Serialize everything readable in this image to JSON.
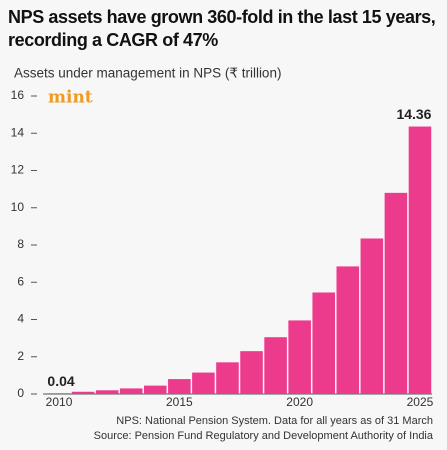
{
  "chart_data": {
    "type": "bar",
    "title": "NPS assets have grown 360-fold in the last 15 years, recording a CAGR of 47%",
    "subtitle": "Assets under management in NPS (₹ trillion)",
    "logo": "mint",
    "x": [
      2010,
      2011,
      2012,
      2013,
      2014,
      2015,
      2016,
      2017,
      2018,
      2019,
      2020,
      2021,
      2022,
      2023,
      2024,
      2025
    ],
    "values": [
      0.04,
      0.12,
      0.2,
      0.3,
      0.45,
      0.8,
      1.15,
      1.7,
      2.3,
      3.05,
      3.95,
      5.45,
      6.85,
      8.35,
      10.8,
      14.36
    ],
    "color": "#ec3a8c",
    "xlim": [
      2009.5,
      2025.5
    ],
    "xticks": [
      2010,
      2015,
      2020,
      2025
    ],
    "ylim": [
      0,
      16
    ],
    "yticks": [
      0,
      2,
      4,
      6,
      8,
      10,
      12,
      14,
      16
    ],
    "grid": false,
    "notes": [
      "NPS: National Pension System. Data for all years as of 31 March",
      "Source: Pension Fund Regulatory and Development Authority of India"
    ]
  }
}
